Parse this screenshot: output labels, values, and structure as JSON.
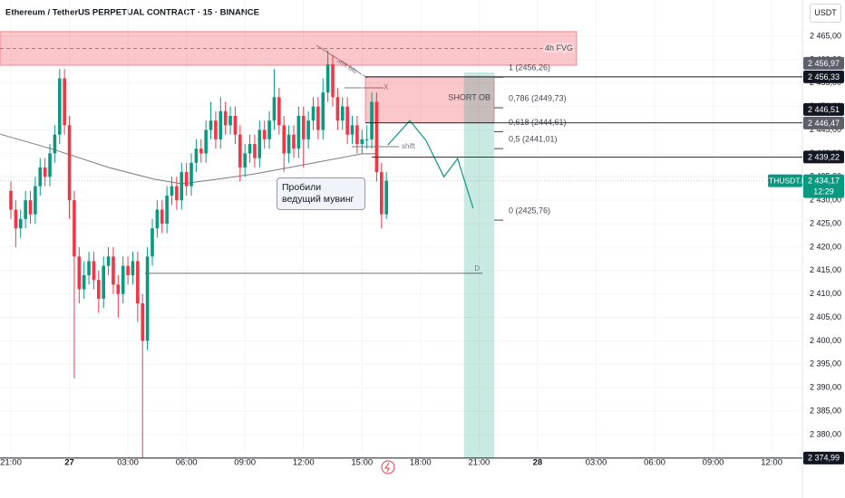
{
  "chart_data": {
    "type": "candlestick",
    "title": "Ethereum / TetherUS PERPETUAL CONTRACT · 15 · BINANCE",
    "currency": "USDT",
    "colors": {
      "up": "#089981",
      "down": "#f23645"
    },
    "xlim": [
      -2.23,
      162.3
    ],
    "ylim": [
      2372.26,
      2472.73
    ],
    "xticks": [
      {
        "value": 0,
        "label": "21:00"
      },
      {
        "value": 12,
        "label": "27"
      },
      {
        "value": 24,
        "label": "03:00"
      },
      {
        "value": 36,
        "label": "06:00"
      },
      {
        "value": 48,
        "label": "09:00"
      },
      {
        "value": 60,
        "label": "12:00"
      },
      {
        "value": 72,
        "label": "15:00"
      },
      {
        "value": 84,
        "label": "18:00"
      },
      {
        "value": 96,
        "label": "21:00"
      },
      {
        "value": 108,
        "label": "28"
      },
      {
        "value": 120,
        "label": "03:00"
      },
      {
        "value": 132,
        "label": "06:00"
      },
      {
        "value": 144,
        "label": "09:00"
      },
      {
        "value": 156,
        "label": "12:00"
      }
    ],
    "yticks": [
      {
        "value": 2380,
        "label": "2 380,00"
      },
      {
        "value": 2385,
        "label": "2 385,00"
      },
      {
        "value": 2390,
        "label": "2 390,00"
      },
      {
        "value": 2395,
        "label": "2 395,00"
      },
      {
        "value": 2400,
        "label": "2 400,00"
      },
      {
        "value": 2405,
        "label": "2 405,00"
      },
      {
        "value": 2410,
        "label": "2 410,00"
      },
      {
        "value": 2415,
        "label": "2 415,00"
      },
      {
        "value": 2420,
        "label": "2 420,00"
      },
      {
        "value": 2425,
        "label": "2 425,00"
      },
      {
        "value": 2430,
        "label": "2 430,00"
      },
      {
        "value": 2435,
        "label": "2 435,00"
      },
      {
        "value": 2440,
        "label": "2 440,00"
      },
      {
        "value": 2445,
        "label": "2 445,00"
      },
      {
        "value": 2450,
        "label": "2 450,00"
      },
      {
        "value": 2455,
        "label": "2 455,00"
      },
      {
        "value": 2460,
        "label": "2 460,00"
      },
      {
        "value": 2465,
        "label": "2 465,00"
      }
    ],
    "open": [
      2432,
      2428,
      2424,
      2426,
      2430,
      2427,
      2433,
      2437,
      2435,
      2440,
      2444,
      2456,
      2446,
      2430,
      2418,
      2411,
      2414,
      2417,
      2413,
      2409,
      2416,
      2418,
      2412,
      2410,
      2416,
      2414,
      2417,
      2408,
      2400,
      2418,
      2424,
      2428,
      2425,
      2431,
      2433,
      2430,
      2436,
      2433,
      2438,
      2441,
      2440,
      2445,
      2447,
      2443,
      2449,
      2446,
      2448,
      2444,
      2437,
      2440,
      2442,
      2439,
      2445,
      2443,
      2447,
      2452,
      2446,
      2440,
      2444,
      2441,
      2448,
      2443,
      2447,
      2450,
      2445,
      2453,
      2459,
      2452,
      2447,
      2450,
      2444,
      2446,
      2442,
      2443,
      2443,
      2451,
      2436,
      2427
    ],
    "high": [
      2434,
      2430,
      2428,
      2432,
      2432,
      2435,
      2439,
      2439,
      2442,
      2446,
      2458,
      2458,
      2448,
      2432,
      2420,
      2417,
      2419,
      2419,
      2415,
      2418,
      2420,
      2420,
      2414,
      2418,
      2418,
      2419,
      2419,
      2410,
      2420,
      2426,
      2430,
      2430,
      2433,
      2435,
      2435,
      2438,
      2438,
      2440,
      2443,
      2443,
      2447,
      2451,
      2449,
      2452,
      2451,
      2450,
      2450,
      2446,
      2442,
      2444,
      2444,
      2447,
      2447,
      2449,
      2458,
      2454,
      2448,
      2446,
      2446,
      2450,
      2450,
      2449,
      2452,
      2452,
      2456,
      2462,
      2461,
      2454,
      2452,
      2452,
      2448,
      2448,
      2445,
      2446,
      2453,
      2453,
      2438,
      2436
    ],
    "low": [
      2426,
      2420,
      2422,
      2424,
      2425,
      2425,
      2431,
      2433,
      2433,
      2438,
      2442,
      2444,
      2426,
      2392,
      2408,
      2409,
      2412,
      2411,
      2406,
      2407,
      2414,
      2410,
      2405,
      2408,
      2412,
      2412,
      2404,
      2374.99,
      2398,
      2416,
      2422,
      2423,
      2423,
      2429,
      2428,
      2428,
      2431,
      2431,
      2436,
      2438,
      2438,
      2443,
      2441,
      2441,
      2444,
      2444,
      2442,
      2434,
      2435,
      2438,
      2437,
      2437,
      2441,
      2441,
      2445,
      2444,
      2436,
      2438,
      2439,
      2439,
      2437,
      2441,
      2445,
      2443,
      2443,
      2451,
      2450,
      2445,
      2445,
      2442,
      2442,
      2440,
      2440,
      2441,
      2441,
      2434,
      2424,
      2426
    ],
    "close": [
      2428,
      2424,
      2426,
      2430,
      2427,
      2433,
      2437,
      2435,
      2440,
      2444,
      2456,
      2446,
      2430,
      2418,
      2411,
      2414,
      2417,
      2413,
      2409,
      2416,
      2418,
      2412,
      2410,
      2416,
      2414,
      2417,
      2408,
      2400,
      2418,
      2424,
      2428,
      2425,
      2431,
      2433,
      2430,
      2436,
      2433,
      2438,
      2441,
      2440,
      2445,
      2447,
      2443,
      2449,
      2446,
      2448,
      2444,
      2437,
      2440,
      2442,
      2439,
      2445,
      2443,
      2447,
      2452,
      2446,
      2440,
      2444,
      2441,
      2448,
      2443,
      2447,
      2450,
      2445,
      2453,
      2459,
      2452,
      2447,
      2450,
      2444,
      2446,
      2442,
      2443,
      2443,
      2451,
      2436,
      2427,
      2434.17
    ],
    "ma": {
      "color": "#787b86",
      "x": [
        -2.2,
        8.9,
        20,
        29.4,
        35,
        42.4,
        49.8,
        57.2,
        64.7,
        72,
        74.9
      ],
      "values": [
        2444.1,
        2440.8,
        2437,
        2434.5,
        2433.5,
        2434.5,
        2435.6,
        2437,
        2438.5,
        2439.9,
        2439.9
      ]
    },
    "projection": {
      "color": "#089981",
      "x": [
        77.3,
        81.8,
        85.1,
        88.8,
        91.6,
        94.8
      ],
      "values": [
        2441.8,
        2447,
        2442.8,
        2435,
        2438.9,
        2428.3
      ]
    },
    "zones": [
      {
        "label": "4h FVG",
        "top": 2466,
        "bottom": 2458.8,
        "x": [
          -2.23,
          116
        ],
        "color": "rgba(242,54,69,0.28)"
      },
      {
        "label": "SHORT OB",
        "top": 2456.33,
        "bottom": 2446.51,
        "x": [
          72.7,
          99.1
        ],
        "color": "rgba(242,54,69,0.28)"
      },
      {
        "top": 2457.3,
        "bottom": 2374.99,
        "x": [
          92.9,
          99.1
        ],
        "color": "rgba(8,153,129,0.22)"
      }
    ],
    "fib": [
      {
        "value": 2456.26,
        "label": "1 (2456,26)"
      },
      {
        "value": 2449.73,
        "label": "0,786 (2449,73)"
      },
      {
        "value": 2444.61,
        "label": "0,618 (2444,61)"
      },
      {
        "value": 2441.01,
        "label": "0,5 (2441,01)"
      },
      {
        "value": 2425.76,
        "label": "0 (2425,76)"
      }
    ],
    "level_d": {
      "value": 2414.4,
      "x": [
        27.5,
        96.7
      ],
      "label": "D"
    },
    "price_tags": [
      {
        "value": 2456.97,
        "label": "2 456,97",
        "color": "#5d606b"
      },
      {
        "value": 2456.33,
        "label": "2 456,33",
        "color": "#131722",
        "from": 72.7
      },
      {
        "value": 2446.51,
        "label": "2 446,51",
        "color": "#131722",
        "from": 72.7
      },
      {
        "value": 2446.47,
        "label": "2 446,47",
        "color": "#5d606b"
      },
      {
        "value": 2439.22,
        "label": "2 439,22",
        "color": "#131722",
        "from": 74
      },
      {
        "value": 2374.99,
        "label": "2 374,99",
        "color": "#131722",
        "from": -2.23
      }
    ],
    "current": {
      "value": 2434.17,
      "label": "2 434,17",
      "symbol": "ETHUSDT.P",
      "countdown": "12:29",
      "color": "#089981"
    },
    "annotations": {
      "smt": "smt btc",
      "x_mark": "X",
      "shift": "shift",
      "callout": "Пробили ведущий мувинг"
    }
  }
}
